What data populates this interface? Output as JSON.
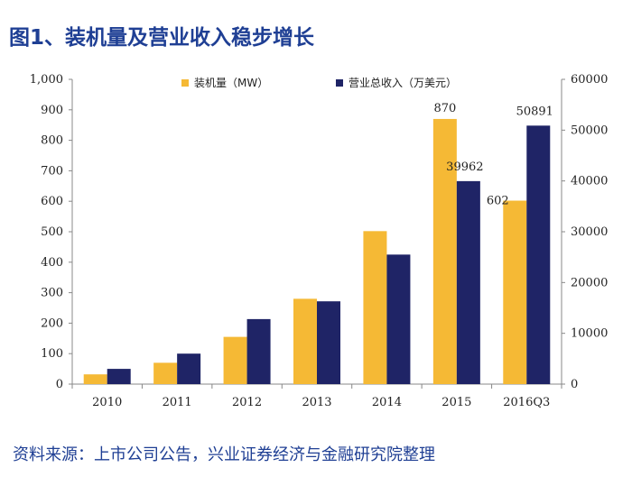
{
  "header": {
    "title": "图1、装机量及营业收入稳步增长"
  },
  "footer": {
    "source": "资料来源：上市公司公告，兴业证券经济与金融研究院整理"
  },
  "chart_data": {
    "type": "bar",
    "title": "",
    "categories": [
      "2010",
      "2011",
      "2012",
      "2013",
      "2014",
      "2015",
      "2016Q3"
    ],
    "series": [
      {
        "name": "装机量（MW）",
        "axis": "left",
        "color": "#f5b935",
        "values": [
          32,
          70,
          155,
          280,
          502,
          870,
          602
        ],
        "labels": [
          "",
          "",
          "",
          "",
          "",
          "870",
          "602"
        ]
      },
      {
        "name": "营业总收入（万美元）",
        "axis": "right",
        "color": "#1f2466",
        "values": [
          3000,
          6000,
          12800,
          16300,
          25500,
          39962,
          50891
        ],
        "labels": [
          "",
          "",
          "",
          "",
          "",
          "39962",
          "50891"
        ]
      }
    ],
    "y_left": {
      "min": 0,
      "max": 1000,
      "step": 100,
      "ticks": [
        "0",
        "100",
        "200",
        "300",
        "400",
        "500",
        "600",
        "700",
        "800",
        "900",
        "1,000"
      ]
    },
    "y_right": {
      "min": 0,
      "max": 60000,
      "step": 10000,
      "ticks": [
        "0",
        "10000",
        "20000",
        "30000",
        "40000",
        "50000",
        "60000"
      ]
    },
    "grid": false,
    "legend": "top"
  }
}
